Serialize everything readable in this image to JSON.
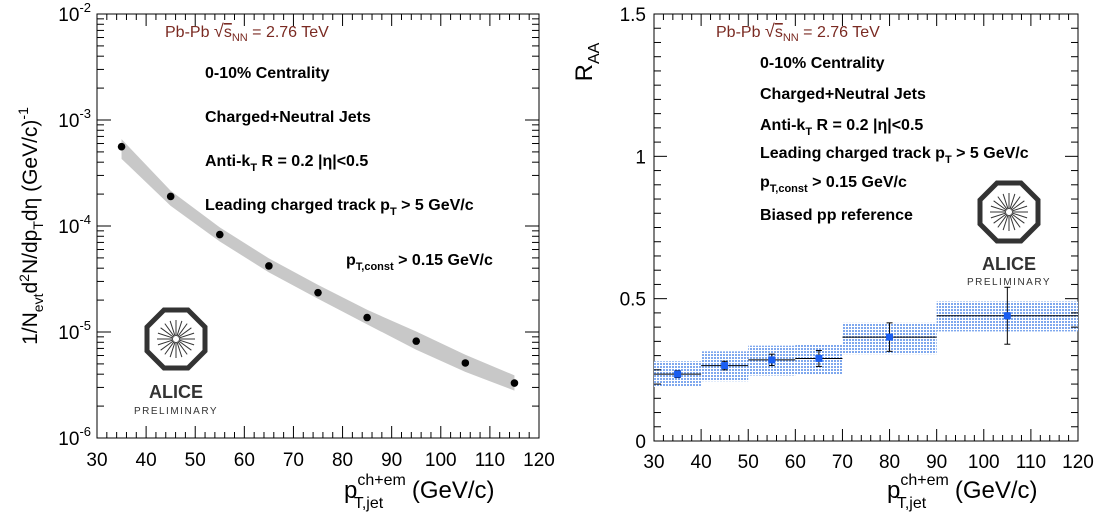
{
  "chart_data": [
    {
      "type": "scatter",
      "xscale": "linear",
      "yscale": "log",
      "xlim": [
        30,
        120
      ],
      "ylim": [
        1e-06,
        0.01
      ],
      "x_ticks": [
        "30",
        "40",
        "50",
        "60",
        "70",
        "80",
        "90",
        "100",
        "110",
        "120"
      ],
      "y_ticks": [
        {
          "base": "10",
          "exp": "-6"
        },
        {
          "base": "10",
          "exp": "-5"
        },
        {
          "base": "10",
          "exp": "-4"
        },
        {
          "base": "10",
          "exp": "-3"
        },
        {
          "base": "10",
          "exp": "-2"
        }
      ],
      "xlabel": {
        "main": "p",
        "sup": "ch+em",
        "sub": "T,jet",
        "unit": " (GeV/c)"
      },
      "ylabel": "1/N_evt d²N/dp_T dη (GeV/c)^-1",
      "collision": {
        "system": "Pb-Pb",
        "sqrt": "s",
        "sub": "NN",
        "energy": " = 2.76 TeV"
      },
      "annotations": {
        "centrality": "0-10% Centrality",
        "jets": "Charged+Neutral Jets",
        "antikt": {
          "pre": "Anti-k",
          "sub": "T",
          "post": " R = 0.2 |η|<0.5"
        },
        "leading": {
          "pre": "Leading charged track p",
          "sub": "T",
          "post": " > 5 GeV/c"
        },
        "const": {
          "pre": "p",
          "sub": "T,const",
          "post": " > 0.15 GeV/c"
        }
      },
      "logo": {
        "text": "ALICE",
        "subtext": "PRELIMINARY"
      },
      "x": [
        35,
        45,
        55,
        65,
        75,
        85,
        95,
        105,
        115
      ],
      "y": [
        0.00056,
        0.00019,
        8.3e-05,
        4.2e-05,
        2.35e-05,
        1.37e-05,
        8.2e-06,
        5.1e-06,
        3.3e-06
      ],
      "band_low": [
        0.00043,
        0.000155,
        7.15e-05,
        3.65e-05,
        2.06e-05,
        1.18e-05,
        6.8e-06,
        4.2e-06,
        2.8e-06
      ],
      "band_high": [
        0.00066,
        0.000215,
        9.7e-05,
        4.95e-05,
        2.78e-05,
        1.62e-05,
        1.01e-05,
        6.1e-06,
        3.9e-06
      ]
    },
    {
      "type": "scatter",
      "xscale": "linear",
      "yscale": "linear",
      "xlim": [
        30,
        120
      ],
      "ylim": [
        0,
        1.5
      ],
      "x_ticks": [
        "30",
        "40",
        "50",
        "60",
        "70",
        "80",
        "90",
        "100",
        "110",
        "120"
      ],
      "y_ticks": [
        "0",
        "0.5",
        "1",
        "1.5"
      ],
      "xlabel": {
        "main": "p",
        "sup": "ch+em",
        "sub": "T,jet",
        "unit": " (GeV/c)"
      },
      "ylabel": {
        "main": "R",
        "sub": "AA"
      },
      "collision": {
        "system": "Pb-Pb",
        "sqrt": "s",
        "sub": "NN",
        "energy": " = 2.76 TeV"
      },
      "annotations": {
        "centrality": "0-10% Centrality",
        "jets": "Charged+Neutral Jets",
        "antikt": {
          "pre": "Anti-k",
          "sub": "T",
          "post": " R = 0.2 |η|<0.5"
        },
        "leading": {
          "pre": "Leading charged track p",
          "sub": "T",
          "post": " > 5 GeV/c"
        },
        "const": {
          "pre": "p",
          "sub": "T,const",
          "post": " > 0.15 GeV/c"
        },
        "ref": "Biased pp reference"
      },
      "logo": {
        "text": "ALICE",
        "subtext": "PRELIMINARY"
      },
      "bins": [
        {
          "x": 35,
          "xlo": 30,
          "xhi": 40,
          "y": 0.235,
          "stat_err": 0.012,
          "sys_lo": 0.19,
          "sys_hi": 0.28
        },
        {
          "x": 45,
          "xlo": 40,
          "xhi": 50,
          "y": 0.265,
          "stat_err": 0.015,
          "sys_lo": 0.21,
          "sys_hi": 0.315
        },
        {
          "x": 55,
          "xlo": 50,
          "xhi": 60,
          "y": 0.285,
          "stat_err": 0.02,
          "sys_lo": 0.23,
          "sys_hi": 0.335
        },
        {
          "x": 65,
          "xlo": 60,
          "xhi": 70,
          "y": 0.29,
          "stat_err": 0.028,
          "sys_lo": 0.235,
          "sys_hi": 0.34
        },
        {
          "x": 80,
          "xlo": 70,
          "xhi": 90,
          "y": 0.365,
          "stat_err": 0.05,
          "sys_lo": 0.305,
          "sys_hi": 0.415
        },
        {
          "x": 105,
          "xlo": 90,
          "xhi": 120,
          "y": 0.44,
          "stat_err": 0.1,
          "sys_lo": 0.385,
          "sys_hi": 0.49
        }
      ],
      "colors": {
        "marker": "#1a5ef2",
        "band": "#7fa8ee"
      }
    }
  ],
  "colors": {
    "collision_text": "#7a2a22",
    "band_grey": "#c8c8c8",
    "marker_black": "#000000"
  }
}
